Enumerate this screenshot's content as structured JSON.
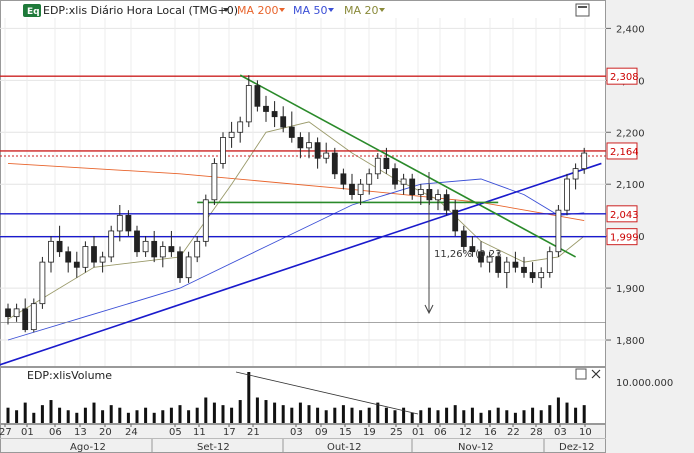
{
  "header": {
    "badge": "Eq",
    "symbol_label": "EDP:xlis Diário Hora Local (TMG+0)",
    "indicators": [
      {
        "label": "MA 200",
        "color": "#e8642c"
      },
      {
        "label": "MA 50",
        "color": "#3b4fd6"
      },
      {
        "label": "MA 20",
        "color": "#8a8a3a"
      }
    ]
  },
  "volume_panel": {
    "title": "EDP:xlisVolume",
    "axis_label": "10.000.000"
  },
  "x_axis": {
    "ticks": [
      "27",
      "01",
      "06",
      "13",
      "20",
      "24",
      "05",
      "11",
      "17",
      "21",
      "03",
      "09",
      "15",
      "19",
      "25",
      "01",
      "06",
      "12",
      "16",
      "22",
      "28",
      "03",
      "10"
    ],
    "months": [
      "Ago-12",
      "Set-12",
      "Out-12",
      "Nov-12",
      "Dez-12"
    ]
  },
  "chart_data": {
    "type": "candlestick",
    "title": "EDP:xlis Diário Hora Local (TMG+0)",
    "ylim": [
      1.75,
      2.42
    ],
    "y_ticks": [
      "2,400",
      "2,300",
      "2,200",
      "2,100",
      "2,000",
      "1,900",
      "1,800"
    ],
    "price_badges": [
      {
        "label": "2,308",
        "value": 2.308
      },
      {
        "label": "2,164",
        "value": 2.164
      },
      {
        "label": "2,043",
        "value": 2.043
      },
      {
        "label": "1,999",
        "value": 1.999
      }
    ],
    "horizontal_levels": [
      {
        "value": 2.308,
        "color": "#cc2222"
      },
      {
        "value": 2.164,
        "color": "#cc2222"
      },
      {
        "value": 2.043,
        "color": "#1a1acc"
      },
      {
        "value": 1.999,
        "color": "#1a1acc"
      },
      {
        "value": 1.834,
        "color": "#888888"
      }
    ],
    "annotation": "11,26% (0,23",
    "ohlc": [
      [
        1.86,
        1.87,
        1.83,
        1.845
      ],
      [
        1.845,
        1.87,
        1.835,
        1.86
      ],
      [
        1.86,
        1.88,
        1.815,
        1.82
      ],
      [
        1.82,
        1.88,
        1.815,
        1.87
      ],
      [
        1.87,
        1.96,
        1.86,
        1.95
      ],
      [
        1.95,
        2.0,
        1.93,
        1.99
      ],
      [
        1.99,
        2.02,
        1.96,
        1.97
      ],
      [
        1.97,
        1.98,
        1.93,
        1.95
      ],
      [
        1.95,
        1.97,
        1.92,
        1.94
      ],
      [
        1.94,
        1.99,
        1.93,
        1.98
      ],
      [
        1.98,
        2.0,
        1.94,
        1.95
      ],
      [
        1.95,
        1.97,
        1.93,
        1.96
      ],
      [
        1.96,
        2.02,
        1.95,
        2.01
      ],
      [
        2.01,
        2.06,
        1.99,
        2.04
      ],
      [
        2.04,
        2.05,
        2.0,
        2.01
      ],
      [
        2.01,
        2.02,
        1.96,
        1.97
      ],
      [
        1.97,
        2.0,
        1.96,
        1.99
      ],
      [
        1.99,
        2.01,
        1.95,
        1.96
      ],
      [
        1.96,
        1.99,
        1.94,
        1.98
      ],
      [
        1.98,
        2.01,
        1.96,
        1.97
      ],
      [
        1.97,
        1.98,
        1.91,
        1.92
      ],
      [
        1.92,
        1.97,
        1.91,
        1.96
      ],
      [
        1.96,
        2.0,
        1.95,
        1.99
      ],
      [
        1.99,
        2.08,
        1.98,
        2.07
      ],
      [
        2.07,
        2.15,
        2.06,
        2.14
      ],
      [
        2.14,
        2.2,
        2.13,
        2.19
      ],
      [
        2.19,
        2.22,
        2.17,
        2.2
      ],
      [
        2.2,
        2.23,
        2.18,
        2.22
      ],
      [
        2.22,
        2.31,
        2.21,
        2.29
      ],
      [
        2.29,
        2.3,
        2.24,
        2.25
      ],
      [
        2.25,
        2.27,
        2.22,
        2.24
      ],
      [
        2.24,
        2.26,
        2.21,
        2.23
      ],
      [
        2.23,
        2.25,
        2.2,
        2.21
      ],
      [
        2.21,
        2.24,
        2.18,
        2.19
      ],
      [
        2.19,
        2.2,
        2.15,
        2.17
      ],
      [
        2.17,
        2.2,
        2.15,
        2.18
      ],
      [
        2.18,
        2.19,
        2.13,
        2.15
      ],
      [
        2.15,
        2.18,
        2.14,
        2.16
      ],
      [
        2.16,
        2.17,
        2.11,
        2.12
      ],
      [
        2.12,
        2.13,
        2.09,
        2.1
      ],
      [
        2.1,
        2.12,
        2.07,
        2.08
      ],
      [
        2.08,
        2.11,
        2.06,
        2.1
      ],
      [
        2.1,
        2.13,
        2.08,
        2.12
      ],
      [
        2.12,
        2.16,
        2.11,
        2.15
      ],
      [
        2.15,
        2.17,
        2.12,
        2.13
      ],
      [
        2.13,
        2.14,
        2.09,
        2.1
      ],
      [
        2.1,
        2.12,
        2.08,
        2.11
      ],
      [
        2.11,
        2.12,
        2.07,
        2.08
      ],
      [
        2.08,
        2.1,
        2.06,
        2.09
      ],
      [
        2.09,
        2.1,
        2.06,
        2.07
      ],
      [
        2.07,
        2.09,
        2.05,
        2.08
      ],
      [
        2.08,
        2.09,
        2.04,
        2.05
      ],
      [
        2.05,
        2.07,
        2.0,
        2.01
      ],
      [
        2.01,
        2.02,
        1.97,
        1.98
      ],
      [
        1.98,
        2.0,
        1.96,
        1.97
      ],
      [
        1.97,
        1.99,
        1.94,
        1.95
      ],
      [
        1.95,
        1.97,
        1.93,
        1.96
      ],
      [
        1.96,
        1.97,
        1.92,
        1.93
      ],
      [
        1.93,
        1.96,
        1.9,
        1.95
      ],
      [
        1.95,
        1.97,
        1.93,
        1.94
      ],
      [
        1.94,
        1.96,
        1.92,
        1.93
      ],
      [
        1.93,
        1.95,
        1.91,
        1.92
      ],
      [
        1.92,
        1.94,
        1.9,
        1.93
      ],
      [
        1.93,
        1.98,
        1.92,
        1.97
      ],
      [
        1.97,
        2.06,
        1.96,
        2.05
      ],
      [
        2.05,
        2.12,
        2.04,
        2.11
      ],
      [
        2.11,
        2.14,
        2.09,
        2.13
      ],
      [
        2.13,
        2.17,
        2.12,
        2.16
      ]
    ],
    "volume": [
      0.3,
      0.25,
      0.4,
      0.2,
      0.35,
      0.45,
      0.3,
      0.25,
      0.2,
      0.3,
      0.4,
      0.25,
      0.35,
      0.3,
      0.2,
      0.25,
      0.3,
      0.2,
      0.25,
      0.3,
      0.35,
      0.25,
      0.3,
      0.5,
      0.4,
      0.35,
      0.3,
      0.45,
      1.0,
      0.5,
      0.45,
      0.4,
      0.35,
      0.3,
      0.4,
      0.35,
      0.3,
      0.25,
      0.3,
      0.35,
      0.3,
      0.25,
      0.3,
      0.4,
      0.3,
      0.25,
      0.3,
      0.2,
      0.25,
      0.3,
      0.25,
      0.3,
      0.35,
      0.25,
      0.3,
      0.2,
      0.25,
      0.3,
      0.25,
      0.2,
      0.25,
      0.3,
      0.25,
      0.35,
      0.5,
      0.4,
      0.3,
      0.35
    ],
    "ma200": [
      [
        0,
        2.14
      ],
      [
        20,
        2.12
      ],
      [
        40,
        2.09
      ],
      [
        55,
        2.065
      ],
      [
        67,
        2.03
      ]
    ],
    "ma50": [
      [
        0,
        1.8
      ],
      [
        10,
        1.85
      ],
      [
        20,
        1.9
      ],
      [
        30,
        1.98
      ],
      [
        40,
        2.06
      ],
      [
        48,
        2.1
      ],
      [
        55,
        2.11
      ],
      [
        60,
        2.08
      ],
      [
        64,
        2.04
      ],
      [
        67,
        2.045
      ]
    ],
    "ma20": [
      [
        0,
        1.84
      ],
      [
        10,
        1.94
      ],
      [
        20,
        1.96
      ],
      [
        26,
        2.1
      ],
      [
        30,
        2.2
      ],
      [
        35,
        2.22
      ],
      [
        40,
        2.16
      ],
      [
        45,
        2.11
      ],
      [
        50,
        2.07
      ],
      [
        55,
        1.99
      ],
      [
        60,
        1.95
      ],
      [
        64,
        1.96
      ],
      [
        67,
        2.0
      ]
    ],
    "trendlines": [
      {
        "from": [
          27,
          2.31
        ],
        "to": [
          66,
          1.96
        ],
        "color": "#2a8a2a"
      },
      {
        "from": [
          -1,
          1.752
        ],
        "to": [
          69,
          2.14
        ],
        "color": "#1a1acc"
      },
      {
        "from": [
          22,
          2.065
        ],
        "to": [
          57,
          2.065
        ],
        "color": "#2a8a2a"
      }
    ]
  }
}
